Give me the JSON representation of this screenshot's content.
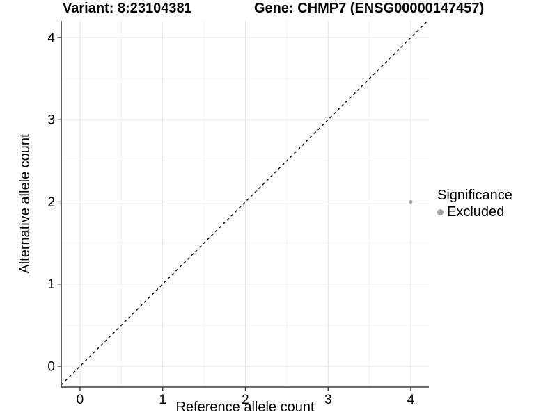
{
  "chart_data": {
    "type": "scatter",
    "titles": {
      "variant": "Variant: 8:23104381",
      "gene": "Gene: CHMP7 (ENSG00000147457)"
    },
    "xlabel": "Reference allele count",
    "ylabel": "Alternative allele count",
    "xticks": [
      0,
      1,
      2,
      3,
      4
    ],
    "yticks": [
      0,
      1,
      2,
      3,
      4
    ],
    "xlim": [
      -0.227,
      4.219
    ],
    "ylim": [
      -0.254,
      4.203
    ],
    "grid": {
      "major": true,
      "minor": true,
      "minor_step": 0.5
    },
    "points": [
      {
        "x": 4,
        "y": 2,
        "series": "Excluded"
      }
    ],
    "point_radius": 2.5,
    "reference_line": {
      "type": "identity",
      "slope": 1,
      "intercept": 0,
      "style": "dashed"
    },
    "legend": {
      "title": "Significance",
      "position": "right",
      "items": [
        {
          "label": "Excluded",
          "color": "#a4a4a4"
        }
      ]
    }
  },
  "colors": {
    "background": "#ffffff",
    "grid_major": "#e3e3e3",
    "grid_minor": "#f1f1f1",
    "axis_line": "#3c3c3c",
    "tick_mark": "#333333",
    "text": "#000000",
    "point": "#a4a4a4",
    "reference_line": "#000000"
  }
}
